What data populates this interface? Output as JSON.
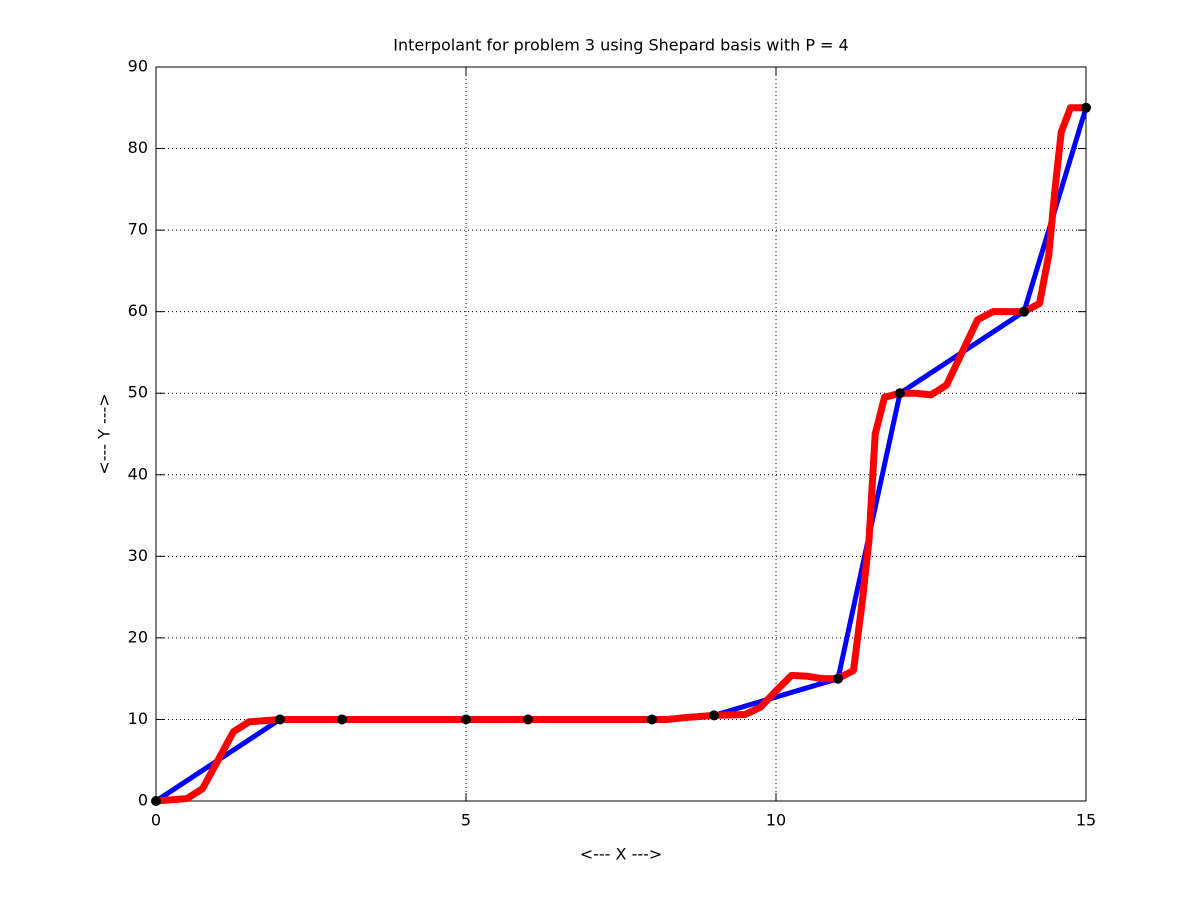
{
  "chart_data": {
    "type": "line",
    "title": "Interpolant for problem 3 using Shepard basis with P = 4",
    "xlabel": "<--- X --->",
    "ylabel": "<--- Y --->",
    "xlim": [
      0,
      15
    ],
    "xticks": [
      0,
      5,
      10,
      15
    ],
    "ylim": [
      0,
      90
    ],
    "yticks": [
      0,
      10,
      20,
      30,
      40,
      50,
      60,
      70,
      80,
      90
    ],
    "grid": true,
    "series": [
      {
        "color": "#0000ff",
        "marker_color": "#000000",
        "x": [
          0,
          2,
          3,
          5,
          6,
          8,
          9,
          11,
          12,
          14,
          15
        ],
        "values": [
          0,
          10,
          10,
          10,
          10,
          10,
          10.5,
          15,
          50,
          60,
          85
        ]
      },
      {
        "color": "#ff0000",
        "x": [
          0,
          0.5,
          0.75,
          1,
          1.25,
          1.5,
          2,
          3,
          4,
          5,
          6,
          7,
          8,
          8.25,
          8.5,
          9,
          9.5,
          9.75,
          10,
          10.25,
          10.5,
          10.75,
          11,
          11.25,
          11.4,
          11.5,
          11.6,
          11.75,
          12,
          12.25,
          12.5,
          12.75,
          13,
          13.25,
          13.5,
          13.75,
          14,
          14.25,
          14.4,
          14.5,
          14.6,
          14.75,
          15
        ],
        "values": [
          0,
          0.3,
          1.5,
          5,
          8.5,
          9.7,
          10,
          10,
          10,
          10,
          10,
          10,
          10,
          10,
          10.2,
          10.5,
          10.6,
          11.5,
          13.5,
          15.4,
          15.3,
          15,
          15,
          16,
          25,
          32,
          45,
          49.5,
          50,
          50,
          49.8,
          51,
          55,
          59,
          60,
          60,
          60,
          61,
          67,
          75,
          82,
          85,
          85
        ]
      }
    ]
  }
}
